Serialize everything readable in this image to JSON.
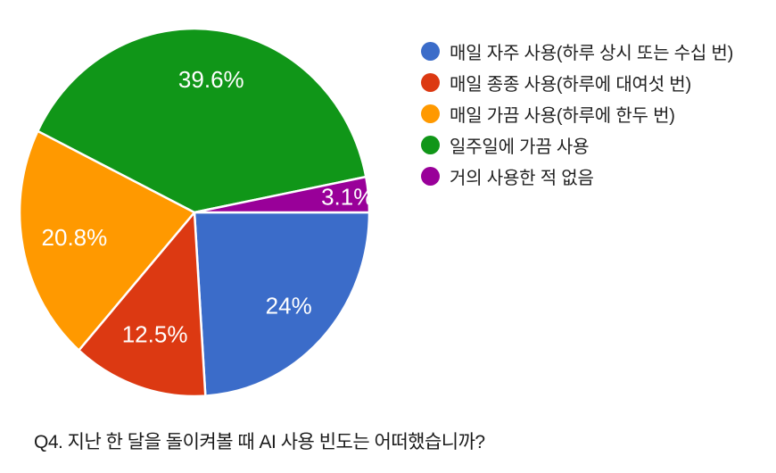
{
  "chart_data": {
    "type": "pie",
    "question": "Q4. 지난 한 달을 돌이켜볼 때 AI 사용 빈도는 어떠했습니까?",
    "legend_position": "right",
    "direction": "clockwise",
    "start_angle_deg": 0,
    "stroke_color": "#ffffff",
    "label_color": "#ffffff",
    "slices": [
      {
        "label": "매일 자주 사용(하루 상시 또는 수십 번)",
        "value": 24,
        "display": "24%",
        "color": "#3B6CC9"
      },
      {
        "label": "매일 종종 사용(하루에 대여섯 번)",
        "value": 12.5,
        "display": "12.5%",
        "color": "#DC3912"
      },
      {
        "label": "매일 가끔 사용(하루에 한두 번)",
        "value": 20.8,
        "display": "20.8%",
        "color": "#FF9900"
      },
      {
        "label": "일주일에 가끔 사용",
        "value": 39.6,
        "display": "39.6%",
        "color": "#109618"
      },
      {
        "label": "거의 사용한 적 없음",
        "value": 3.1,
        "display": "3.1%",
        "color": "#990099"
      }
    ],
    "label_radius": [
      0.74,
      0.7,
      0.7,
      0.73,
      0.88
    ]
  }
}
